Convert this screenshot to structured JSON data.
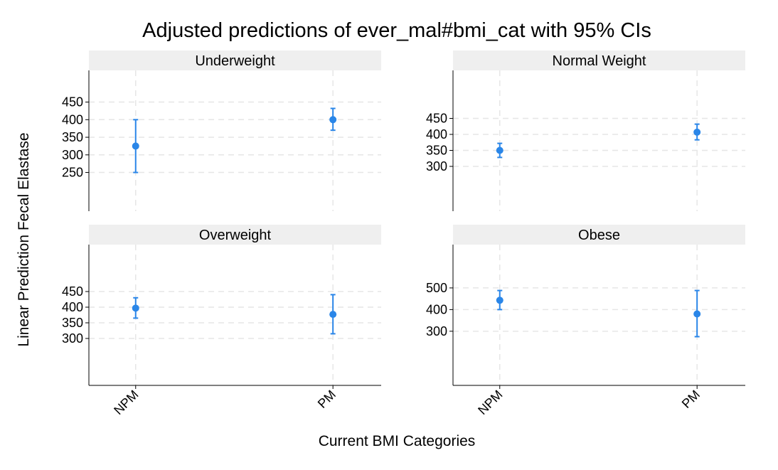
{
  "chart_data": {
    "type": "scatter",
    "subtype": "point-range-facets",
    "title": "Adjusted predictions of ever_mal#bmi_cat with 95% CIs",
    "xlabel": "Current BMI Categories",
    "ylabel": "Linear Prediction Fecal Elastase",
    "x_categories": [
      "NPM",
      "PM"
    ],
    "grid": true,
    "colors": {
      "point": "#2a86e8",
      "grid": "#e6e6e6",
      "strip_background": "#efefef",
      "axis": "#000000"
    },
    "panels": [
      {
        "name": "Underweight",
        "yticks": [
          250,
          300,
          350,
          400,
          450
        ],
        "ylim": [
          140,
          540
        ],
        "points": [
          {
            "x": "NPM",
            "y": 325,
            "lower": 250,
            "upper": 400
          },
          {
            "x": "PM",
            "y": 400,
            "lower": 370,
            "upper": 432
          }
        ]
      },
      {
        "name": "Normal Weight",
        "yticks": [
          300,
          350,
          400,
          450
        ],
        "ylim": [
          160,
          600
        ],
        "points": [
          {
            "x": "NPM",
            "y": 350,
            "lower": 328,
            "upper": 372
          },
          {
            "x": "PM",
            "y": 407,
            "lower": 383,
            "upper": 432
          }
        ]
      },
      {
        "name": "Overweight",
        "yticks": [
          300,
          350,
          400,
          450
        ],
        "ylim": [
          150,
          600
        ],
        "points": [
          {
            "x": "NPM",
            "y": 397,
            "lower": 365,
            "upper": 430
          },
          {
            "x": "PM",
            "y": 377,
            "lower": 315,
            "upper": 440
          }
        ]
      },
      {
        "name": "Obese",
        "yticks": [
          300,
          400,
          500
        ],
        "ylim": [
          50,
          700
        ],
        "points": [
          {
            "x": "NPM",
            "y": 443,
            "lower": 400,
            "upper": 488
          },
          {
            "x": "PM",
            "y": 380,
            "lower": 275,
            "upper": 488
          }
        ]
      }
    ]
  }
}
